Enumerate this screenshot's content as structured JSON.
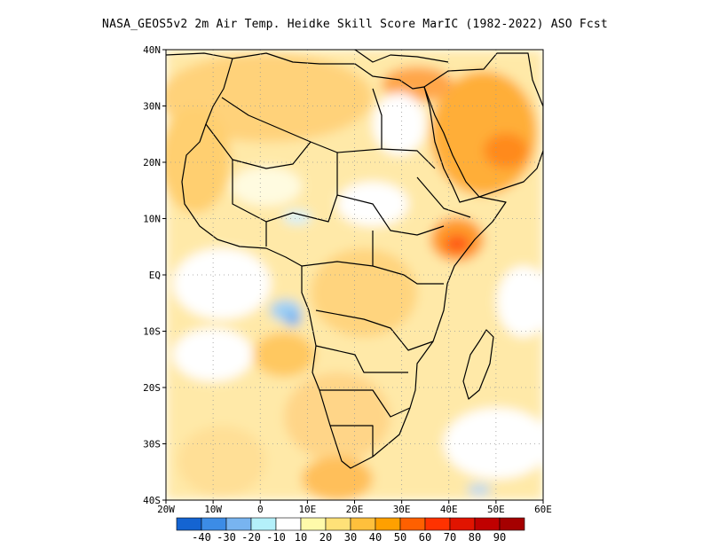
{
  "title": "NASA_GEOS5v2  2m Air Temp. Heidke Skill Score MarIC (1982-2022) ASO Fcst",
  "map": {
    "lon_min": -20,
    "lon_max": 60,
    "lat_min": -40,
    "lat_max": 40,
    "x_ticks": [
      {
        "value": -20,
        "label": "20W"
      },
      {
        "value": -10,
        "label": "10W"
      },
      {
        "value": 0,
        "label": "0"
      },
      {
        "value": 10,
        "label": "10E"
      },
      {
        "value": 20,
        "label": "20E"
      },
      {
        "value": 30,
        "label": "30E"
      },
      {
        "value": 40,
        "label": "40E"
      },
      {
        "value": 50,
        "label": "50E"
      },
      {
        "value": 60,
        "label": "60E"
      }
    ],
    "y_ticks": [
      {
        "value": 40,
        "label": "40N"
      },
      {
        "value": 30,
        "label": "30N"
      },
      {
        "value": 20,
        "label": "20N"
      },
      {
        "value": 10,
        "label": "10N"
      },
      {
        "value": 0,
        "label": "EQ"
      },
      {
        "value": -10,
        "label": "10S"
      },
      {
        "value": -20,
        "label": "20S"
      },
      {
        "value": -30,
        "label": "30S"
      },
      {
        "value": -40,
        "label": "40S"
      }
    ],
    "grid": "dotted"
  },
  "colorbar": {
    "colors": [
      "#1464d2",
      "#3c8ce6",
      "#78b4f0",
      "#b4f0fa",
      "#ffffff",
      "#fffaaa",
      "#ffe178",
      "#ffc03c",
      "#ffa000",
      "#ff6000",
      "#ff3200",
      "#e11400",
      "#c00000",
      "#a50000"
    ],
    "labels": [
      "-40",
      "-30",
      "-20",
      "-10",
      "10",
      "20",
      "30",
      "40",
      "50",
      "60",
      "70",
      "80",
      "90"
    ]
  },
  "colors": {
    "land_outline": "#000000",
    "background": "#ffffff"
  }
}
